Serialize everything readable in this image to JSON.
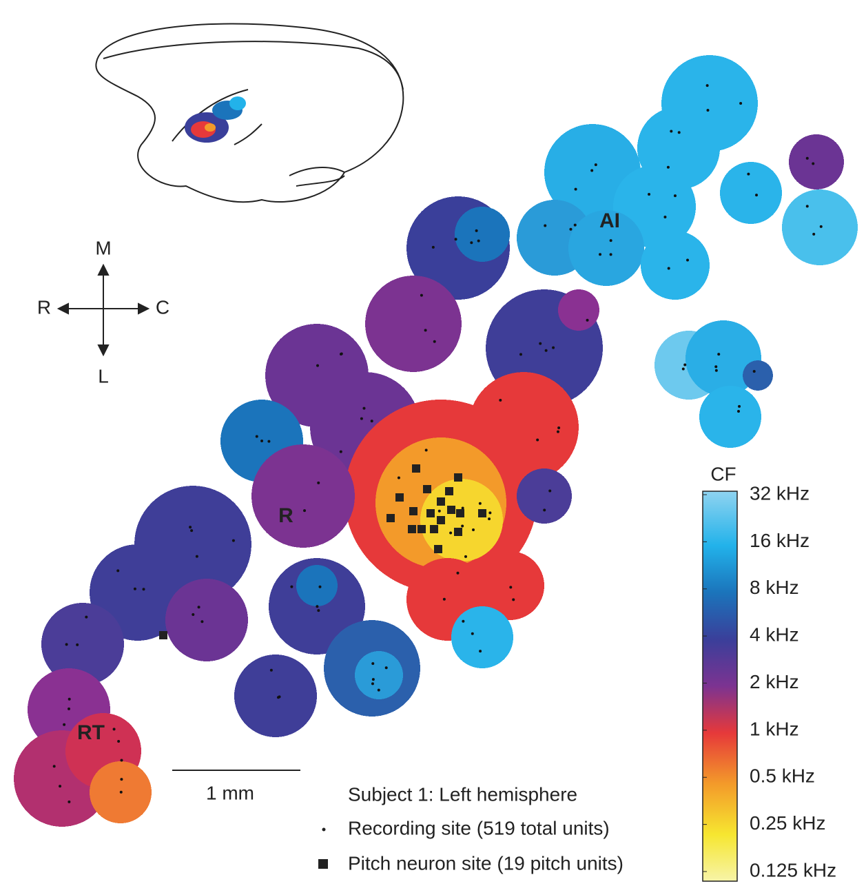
{
  "regions": {
    "ai": "AI",
    "r": "R",
    "rt": "RT"
  },
  "compass": {
    "m": "M",
    "l": "L",
    "r": "R",
    "c": "C"
  },
  "scale_bar": "1 mm",
  "legend": {
    "title": "Subject 1: Left hemisphere",
    "items": [
      "Recording site (519 total units)",
      "Pitch neuron site (19 pitch units)"
    ]
  },
  "colorbar": {
    "title": "CF",
    "labels": [
      "32 kHz",
      "16 kHz",
      "8 kHz",
      "4 kHz",
      "2 kHz",
      "1 kHz",
      "0.5 kHz",
      "0.25 kHz",
      "0.125 kHz"
    ]
  }
}
